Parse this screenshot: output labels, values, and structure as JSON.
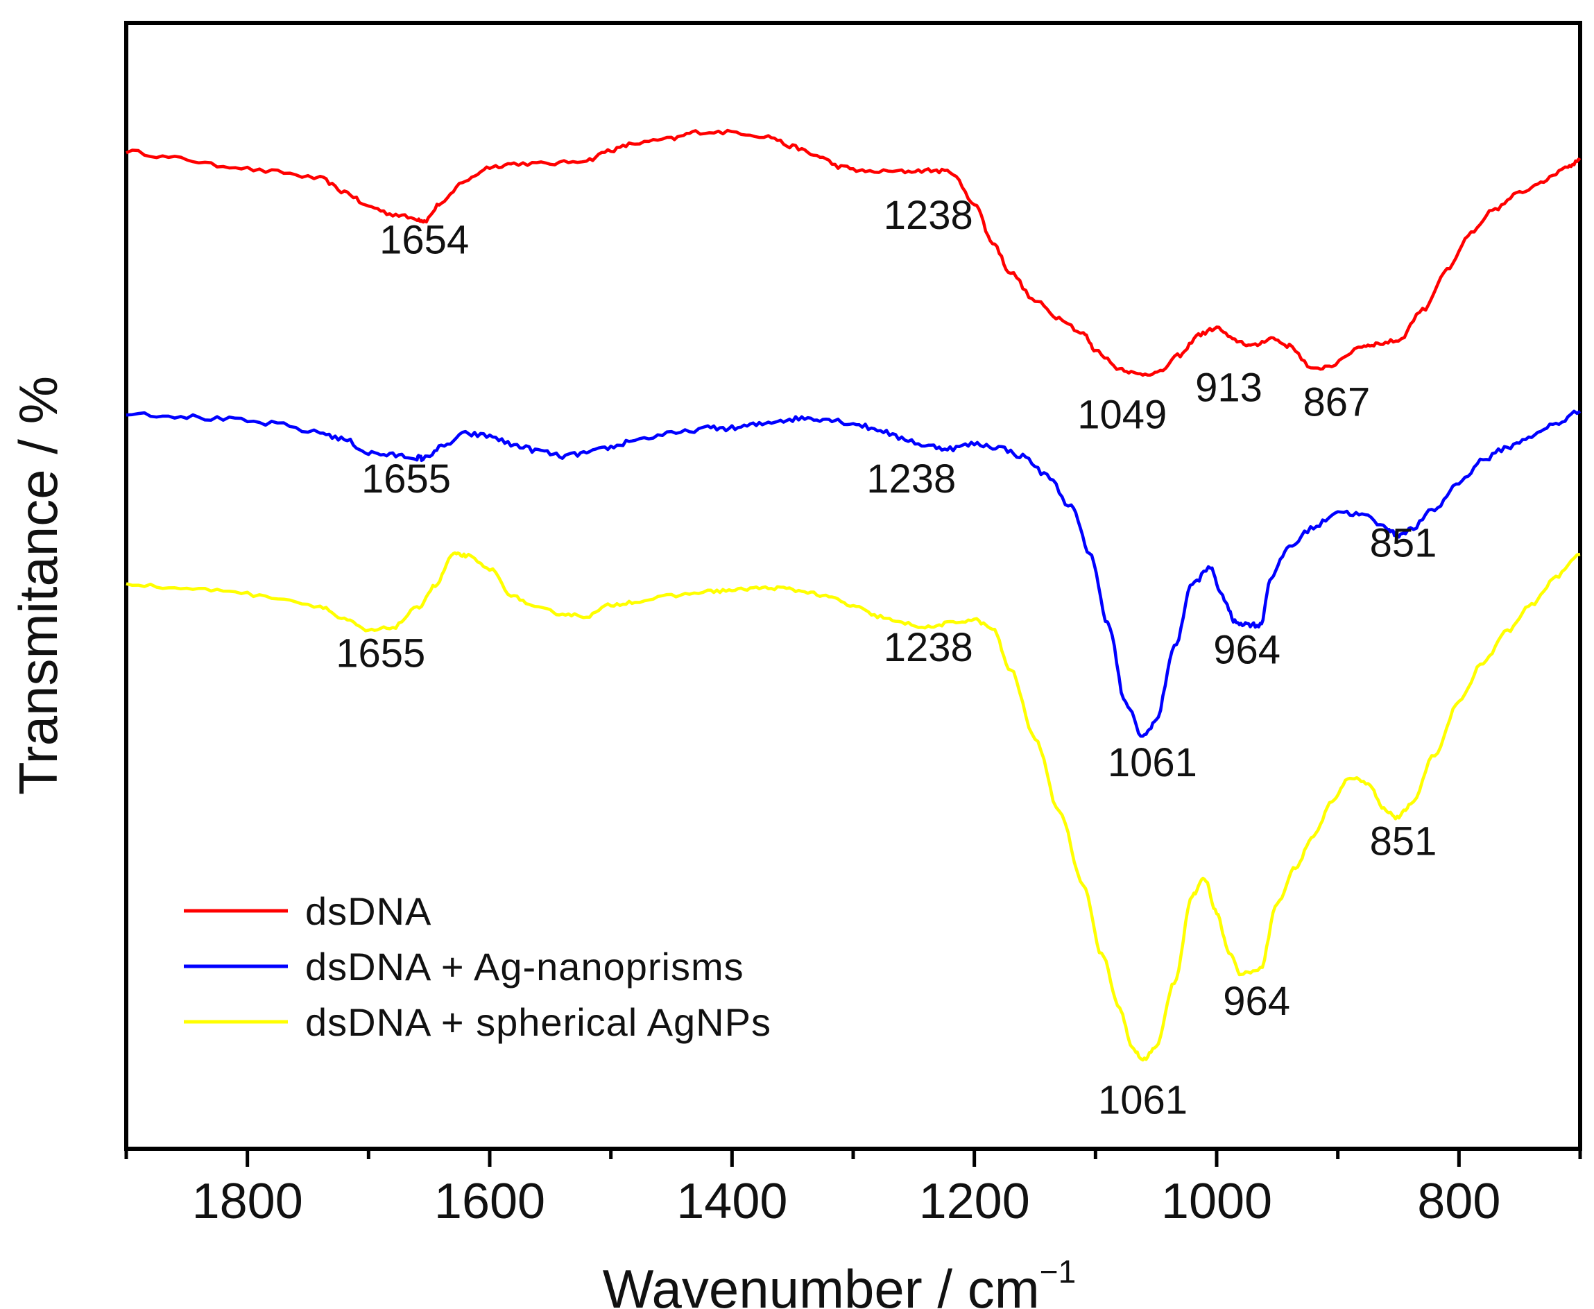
{
  "chart_data": {
    "type": "line",
    "title": "",
    "xlabel": "Wavenumber / cm",
    "xlabel_superscript": "−1",
    "ylabel": "Transmitance / %",
    "xlim": [
      1900,
      700
    ],
    "x_reversed": true,
    "ylim": [
      0,
      100
    ],
    "y_ticks_shown": false,
    "grid": false,
    "legend_position": "bottom-left",
    "x_ticks": [
      1800,
      1600,
      1400,
      1200,
      1000,
      800
    ],
    "x_tick_labels": [
      "1800",
      "1600",
      "1400",
      "1200",
      "1000",
      "800"
    ],
    "x_minor_ticks": [
      1900,
      1700,
      1500,
      1300,
      1100,
      900,
      700
    ],
    "series": [
      {
        "name": "dsDNA",
        "color": "#ff0000",
        "noise": 0.35,
        "x": [
          1900,
          1860,
          1820,
          1780,
          1740,
          1720,
          1700,
          1680,
          1660,
          1654,
          1640,
          1620,
          1600,
          1580,
          1550,
          1520,
          1500,
          1480,
          1450,
          1430,
          1400,
          1370,
          1350,
          1330,
          1310,
          1290,
          1260,
          1238,
          1220,
          1200,
          1185,
          1170,
          1150,
          1130,
          1110,
          1100,
          1080,
          1065,
          1049,
          1030,
          1015,
          1000,
          985,
          970,
          955,
          940,
          920,
          905,
          880,
          867,
          850,
          830,
          810,
          790,
          770,
          750,
          730,
          710,
          700
        ],
        "y": [
          88.6,
          88.0,
          87.3,
          86.8,
          86.2,
          85.0,
          83.7,
          83.0,
          82.6,
          82.4,
          84.0,
          86.0,
          87.2,
          87.5,
          87.5,
          87.8,
          88.7,
          89.3,
          89.7,
          90.3,
          90.3,
          89.9,
          89.0,
          88.2,
          87.2,
          86.8,
          86.8,
          86.9,
          86.8,
          84.0,
          80.5,
          77.8,
          75.3,
          73.8,
          72.4,
          70.9,
          69.3,
          68.8,
          68.9,
          70.5,
          72.3,
          72.9,
          71.8,
          71.3,
          72.0,
          71.3,
          69.2,
          69.6,
          71.3,
          71.5,
          71.8,
          74.5,
          78.0,
          81.3,
          83.5,
          84.9,
          86.0,
          87.3,
          87.8
        ]
      },
      {
        "name": "dsDNA + Ag-nanoprisms",
        "color": "#0000ff",
        "noise": 0.45,
        "x": [
          1900,
          1860,
          1820,
          1780,
          1740,
          1720,
          1700,
          1680,
          1660,
          1655,
          1640,
          1620,
          1600,
          1580,
          1560,
          1540,
          1520,
          1500,
          1480,
          1450,
          1420,
          1400,
          1380,
          1360,
          1340,
          1320,
          1300,
          1280,
          1260,
          1238,
          1220,
          1200,
          1180,
          1160,
          1140,
          1120,
          1105,
          1090,
          1075,
          1061,
          1050,
          1035,
          1020,
          1005,
          995,
          985,
          975,
          964,
          955,
          940,
          920,
          900,
          880,
          860,
          851,
          840,
          820,
          800,
          780,
          760,
          740,
          720,
          700
        ],
        "y": [
          65.4,
          65.1,
          64.8,
          64.4,
          63.6,
          63.0,
          61.8,
          61.6,
          61.4,
          61.3,
          62.3,
          63.5,
          63.3,
          62.5,
          62.0,
          61.5,
          61.8,
          62.3,
          63.0,
          63.5,
          64.0,
          64.0,
          64.3,
          64.7,
          64.9,
          64.8,
          64.4,
          63.9,
          63.1,
          62.4,
          62.2,
          62.6,
          62.3,
          61.5,
          59.8,
          57.0,
          53.0,
          46.8,
          39.5,
          36.6,
          38.0,
          44.5,
          50.2,
          51.6,
          49.0,
          46.8,
          46.6,
          46.5,
          50.8,
          53.5,
          55.2,
          56.6,
          56.3,
          55.2,
          54.5,
          55.0,
          56.8,
          59.2,
          61.2,
          62.3,
          63.3,
          64.4,
          65.5
        ]
      },
      {
        "name": "dsDNA + spherical AgNPs",
        "color": "#ffff00",
        "noise": 0.3,
        "x": [
          1900,
          1860,
          1820,
          1780,
          1740,
          1720,
          1700,
          1680,
          1660,
          1645,
          1630,
          1620,
          1600,
          1580,
          1560,
          1540,
          1520,
          1500,
          1480,
          1450,
          1420,
          1400,
          1380,
          1360,
          1340,
          1320,
          1300,
          1280,
          1260,
          1238,
          1220,
          1200,
          1185,
          1170,
          1150,
          1130,
          1110,
          1095,
          1080,
          1070,
          1061,
          1050,
          1035,
          1020,
          1010,
          1000,
          990,
          980,
          964,
          950,
          935,
          920,
          905,
          890,
          875,
          862,
          851,
          840,
          820,
          800,
          780,
          760,
          740,
          720,
          700
        ],
        "y": [
          50.2,
          49.8,
          49.6,
          49.0,
          48.2,
          47.0,
          46.0,
          46.3,
          48.0,
          50.0,
          52.8,
          52.7,
          51.5,
          49.0,
          48.0,
          47.5,
          47.3,
          48.3,
          48.6,
          49.1,
          49.5,
          49.6,
          49.8,
          49.8,
          49.5,
          49.0,
          48.2,
          47.3,
          46.7,
          46.3,
          46.7,
          47.0,
          46.2,
          42.5,
          36.5,
          30.0,
          23.5,
          17.3,
          12.5,
          9.0,
          7.9,
          9.0,
          14.8,
          22.5,
          24.0,
          21.0,
          17.5,
          15.5,
          16.0,
          21.8,
          25.0,
          27.8,
          30.8,
          33.0,
          32.5,
          30.2,
          29.4,
          30.5,
          35.0,
          39.8,
          43.2,
          46.0,
          48.3,
          50.8,
          52.8
        ]
      }
    ],
    "annotations": [
      {
        "text": "1654",
        "series": "dsDNA",
        "x": 1654,
        "y": 79.5
      },
      {
        "text": "1238",
        "series": "dsDNA",
        "x": 1238,
        "y": 81.7
      },
      {
        "text": "1049",
        "series": "dsDNA",
        "x": 1078,
        "y": 64.0
      },
      {
        "text": "913",
        "series": "dsDNA",
        "x": 990,
        "y": 66.4
      },
      {
        "text": "867",
        "series": "dsDNA",
        "x": 901,
        "y": 65.1
      },
      {
        "text": "1655",
        "series": "dsDNA + Ag-nanoprisms",
        "x": 1669,
        "y": 58.3
      },
      {
        "text": "1238",
        "series": "dsDNA + Ag-nanoprisms",
        "x": 1252,
        "y": 58.3
      },
      {
        "text": "851",
        "series": "dsDNA + Ag-nanoprisms",
        "x": 846,
        "y": 52.6
      },
      {
        "text": "964",
        "series": "dsDNA + Ag-nanoprisms",
        "x": 975,
        "y": 43.1
      },
      {
        "text": "1061",
        "series": "dsDNA + Ag-nanoprisms",
        "x": 1053,
        "y": 33.1
      },
      {
        "text": "1655",
        "series": "dsDNA + spherical AgNPs",
        "x": 1690,
        "y": 42.8
      },
      {
        "text": "1238",
        "series": "dsDNA + spherical AgNPs",
        "x": 1238,
        "y": 43.3
      },
      {
        "text": "851",
        "series": "dsDNA + spherical AgNPs",
        "x": 846,
        "y": 26.1
      },
      {
        "text": "964",
        "series": "dsDNA + spherical AgNPs",
        "x": 967,
        "y": 11.9
      },
      {
        "text": "1061",
        "series": "dsDNA + spherical AgNPs",
        "x": 1061,
        "y": 3.1
      }
    ]
  }
}
